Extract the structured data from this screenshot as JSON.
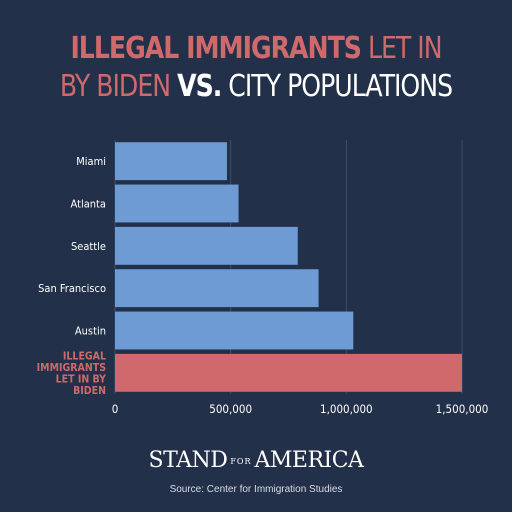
{
  "title": {
    "part1": "ILLEGAL IMMIGRANTS",
    "part2": " LET IN",
    "part3": "BY BIDEN ",
    "part4": "VS.",
    "part5": " CITY POPULATIONS"
  },
  "brand": {
    "stand": "STAND",
    "for": "FOR",
    "america": "AMERICA"
  },
  "source": "Source: Center for Immigration Studies",
  "colors": {
    "background": "#233049",
    "city_bar": "#6e9bd4",
    "highlight_bar": "#d0696b",
    "text": "#ffffff"
  },
  "chart_data": {
    "type": "bar",
    "orientation": "horizontal",
    "categories": [
      "Miami",
      "Atlanta",
      "Seattle",
      "San Francisco",
      "Austin",
      "ILLEGAL IMMIGRANTS LET IN BY BIDEN"
    ],
    "category_lines": [
      [
        "Miami"
      ],
      [
        "Atlanta"
      ],
      [
        "Seattle"
      ],
      [
        "San Francisco"
      ],
      [
        "Austin"
      ],
      [
        "ILLEGAL",
        "IMMIGRANTS",
        "LET IN BY",
        "BIDEN"
      ]
    ],
    "values": [
      484000,
      534000,
      790000,
      880000,
      1030000,
      1500000
    ],
    "highlight": [
      false,
      false,
      false,
      false,
      false,
      true
    ],
    "xlim": [
      0,
      1500000
    ],
    "xticks": [
      0,
      500000,
      1000000,
      1500000
    ],
    "xtick_labels": [
      "0",
      "500,000",
      "1,000,000",
      "1,500,000"
    ],
    "grid": true
  }
}
